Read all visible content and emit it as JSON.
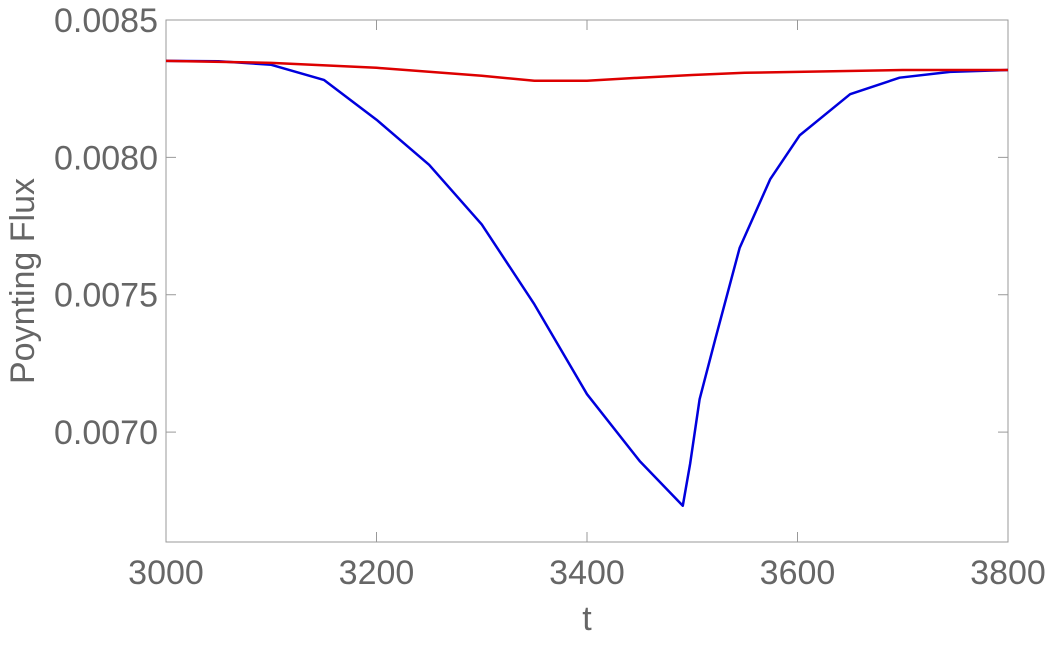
{
  "chart_data": {
    "type": "line",
    "xlabel": "t",
    "ylabel": "Poynting Flux",
    "xlim": [
      3000,
      3800
    ],
    "xticks": [
      3000,
      3200,
      3400,
      3600,
      3800
    ],
    "ylim": [
      0.0066,
      0.0085
    ],
    "yticks": [
      {
        "value": 0.007,
        "label": "0.0070"
      },
      0.0075,
      {
        "value": 0.008,
        "label": "0.0080"
      },
      0.0085
    ],
    "series": [
      {
        "color": "#0000dd",
        "x": [
          3000,
          3050,
          3100,
          3150,
          3200,
          3250,
          3300,
          3350,
          3400,
          3450,
          3491,
          3498,
          3507,
          3522,
          3545,
          3574,
          3602,
          3650,
          3697,
          3745,
          3800
        ],
        "values": [
          0.008351,
          0.00835,
          0.008337,
          0.008282,
          0.008137,
          0.007973,
          0.007756,
          0.007465,
          0.007138,
          0.006895,
          0.006732,
          0.006885,
          0.00712,
          0.00734,
          0.00767,
          0.00792,
          0.00808,
          0.00823,
          0.00829,
          0.008311,
          0.008318
        ]
      },
      {
        "color": "#dd0000",
        "x": [
          3000,
          3100,
          3200,
          3300,
          3350,
          3400,
          3450,
          3500,
          3550,
          3600,
          3700,
          3800
        ],
        "values": [
          0.008351,
          0.008344,
          0.008326,
          0.008297,
          0.008279,
          0.008279,
          0.00829,
          0.0083,
          0.008308,
          0.008311,
          0.008318,
          0.008318
        ]
      }
    ]
  }
}
